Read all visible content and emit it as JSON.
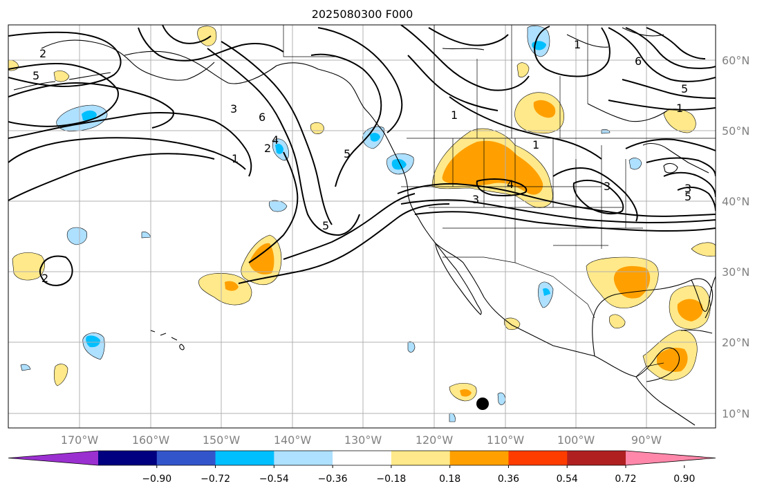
{
  "title": "2025080300 F000",
  "lon_labels": [
    "170°W",
    "160°W",
    "150°W",
    "140°W",
    "130°W",
    "120°W",
    "110°W",
    "100°W",
    "90°W"
  ],
  "lat_labels": [
    "60°N",
    "50°N",
    "40°N",
    "30°N",
    "20°N",
    "10°N"
  ],
  "colorbar": {
    "ticks": [
      "−0.90",
      "−0.72",
      "−0.54",
      "−0.36",
      "−0.18",
      "0.18",
      "0.36",
      "0.54",
      "0.72",
      "0.90"
    ],
    "colors": [
      "#9b30d0",
      "#000080",
      "#3355cc",
      "#00bfff",
      "#aee0ff",
      "#ffffff",
      "#ffe98a",
      "#ffa000",
      "#ff3c00",
      "#b02020",
      "#ff88aa"
    ]
  },
  "contour_labels": [
    "2",
    "5",
    "3",
    "6",
    "2",
    "1",
    "4",
    "5",
    "1",
    "1",
    "6",
    "5",
    "1",
    "4",
    "3",
    "5",
    "1",
    "2",
    "5",
    "3",
    "3"
  ],
  "marker": "storm-center-dot"
}
